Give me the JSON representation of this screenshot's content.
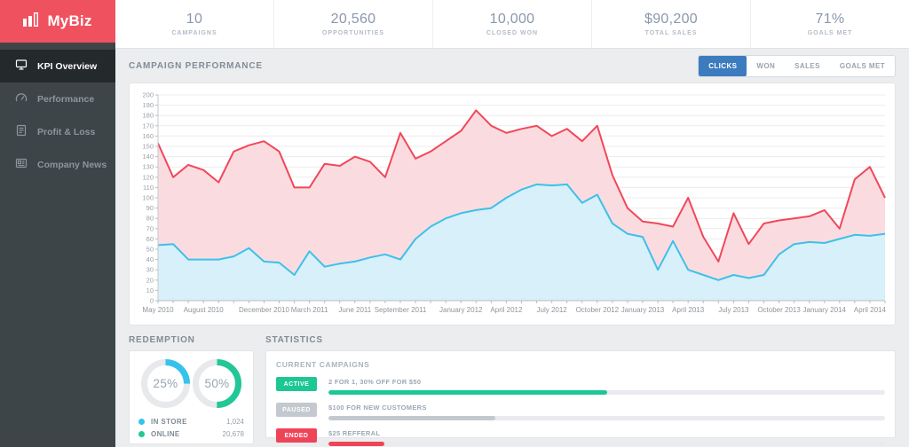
{
  "brand": {
    "name": "MyBiz"
  },
  "sidebar": {
    "items": [
      {
        "label": "KPI Overview",
        "icon": "monitor-icon",
        "active": true
      },
      {
        "label": "Performance",
        "icon": "gauge-icon",
        "active": false
      },
      {
        "label": "Profit & Loss",
        "icon": "ledger-icon",
        "active": false
      },
      {
        "label": "Company News",
        "icon": "newspaper-icon",
        "active": false
      }
    ]
  },
  "stats": [
    {
      "value": "10",
      "label": "CAMPAIGNS"
    },
    {
      "value": "20,560",
      "label": "OPPORTUNITIES"
    },
    {
      "value": "10,000",
      "label": "CLOSED WON"
    },
    {
      "value": "$90,200",
      "label": "TOTAL SALES"
    },
    {
      "value": "71%",
      "label": "GOALS MET"
    }
  ],
  "chart_section": {
    "title": "CAMPAIGN PERFORMANCE",
    "tabs": [
      {
        "label": "CLICKS",
        "active": true
      },
      {
        "label": "WON",
        "active": false
      },
      {
        "label": "SALES",
        "active": false
      },
      {
        "label": "GOALS MET",
        "active": false
      }
    ]
  },
  "chart_data": {
    "type": "area",
    "title": "CAMPAIGN PERFORMANCE",
    "ylim": [
      0,
      200
    ],
    "y_step": 10,
    "grid": true,
    "x_tick_labels": [
      "May 2010",
      "August 2010",
      "December 2010",
      "March 2011",
      "June 2011",
      "September 2011",
      "January 2012",
      "April 2012",
      "July 2012",
      "October 2012",
      "January 2013",
      "April 2013",
      "July 2013",
      "October 2013",
      "January 2014",
      "April 2014"
    ],
    "x_tick_indices": [
      0,
      3,
      7,
      10,
      13,
      16,
      20,
      23,
      26,
      29,
      32,
      35,
      38,
      41,
      44,
      47
    ],
    "series": [
      {
        "name": "total-clicks",
        "color": "#F0485A",
        "fill": "#FADCE0",
        "values": [
          153,
          120,
          132,
          127,
          115,
          145,
          151,
          155,
          145,
          110,
          110,
          133,
          131,
          140,
          135,
          120,
          163,
          138,
          145,
          155,
          165,
          185,
          170,
          163,
          167,
          170,
          160,
          167,
          155,
          170,
          122,
          90,
          77,
          75,
          72,
          100,
          62,
          38,
          85,
          55,
          75,
          78,
          80,
          82,
          88,
          70,
          118,
          130,
          100
        ]
      },
      {
        "name": "unique-clicks",
        "color": "#3EC0E9",
        "fill": "#D7F0FA",
        "values": [
          54,
          55,
          40,
          40,
          40,
          43,
          51,
          38,
          37,
          25,
          48,
          33,
          36,
          38,
          42,
          45,
          40,
          60,
          72,
          80,
          85,
          88,
          90,
          100,
          108,
          113,
          112,
          113,
          95,
          103,
          75,
          65,
          62,
          30,
          58,
          30,
          25,
          20,
          25,
          22,
          25,
          45,
          55,
          57,
          56,
          60,
          64,
          63,
          65
        ]
      }
    ]
  },
  "redemption": {
    "title": "REDEMPTION",
    "gauges": [
      {
        "label": "25%",
        "percent": 25,
        "color": "#35C3EE"
      },
      {
        "label": "50%",
        "percent": 50,
        "color": "#21C795"
      }
    ],
    "legend": [
      {
        "label": "IN STORE",
        "value": "1,024",
        "color": "#35C3EE"
      },
      {
        "label": "ONLINE",
        "value": "20,678",
        "color": "#21C795"
      }
    ]
  },
  "statistics": {
    "title": "STATISTICS",
    "subtitle": "CURRENT CAMPAIGNS",
    "campaigns": [
      {
        "status": "ACTIVE",
        "color": "#1DC795",
        "label": "2 FOR 1, 30% OFF FOR $50",
        "progress": 50
      },
      {
        "status": "PAUSED",
        "color": "#C3C9CF",
        "label": "$100 FOR NEW CUSTOMERS",
        "progress": 30
      },
      {
        "status": "ENDED",
        "color": "#EF4458",
        "label": "$25 REFFERAL",
        "progress": 10
      }
    ]
  }
}
